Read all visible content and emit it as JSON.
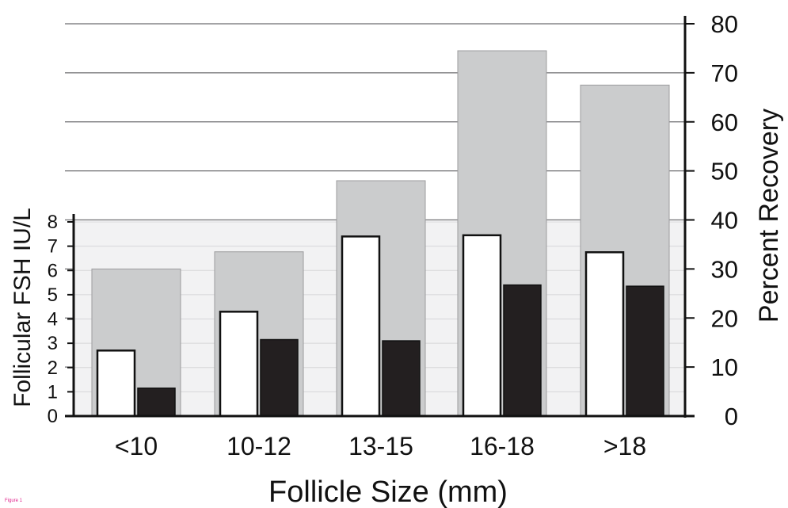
{
  "chart_data": {
    "type": "bar",
    "categories": [
      "<10",
      "10-12",
      "13-15",
      "16-18",
      ">18"
    ],
    "xlabel": "Follicle Size (mm)",
    "ylabel_left": "Follicular FSH IU/L",
    "ylabel_right": "Percent Recovery",
    "ylim_left": [
      0,
      8
    ],
    "ylim_right": [
      0,
      80
    ],
    "yticks_left": [
      "0",
      "1",
      "2",
      "3",
      "4",
      "5",
      "6",
      "7",
      "8"
    ],
    "yticks_right": [
      "0",
      "10",
      "20",
      "30",
      "40",
      "50",
      "60",
      "70",
      "80"
    ],
    "grid": true,
    "series": [
      {
        "axis": "right",
        "color": "#cbcccd",
        "values": [
          30,
          33.5,
          48,
          74.5,
          67.5
        ]
      },
      {
        "axis": "left",
        "color": "#ffffff",
        "values": [
          2.7,
          4.3,
          7.4,
          7.45,
          6.75
        ]
      },
      {
        "axis": "left",
        "color": "#231f20",
        "values": [
          1.15,
          3.15,
          3.1,
          5.4,
          5.35
        ]
      }
    ]
  },
  "caption": "Figure 1"
}
